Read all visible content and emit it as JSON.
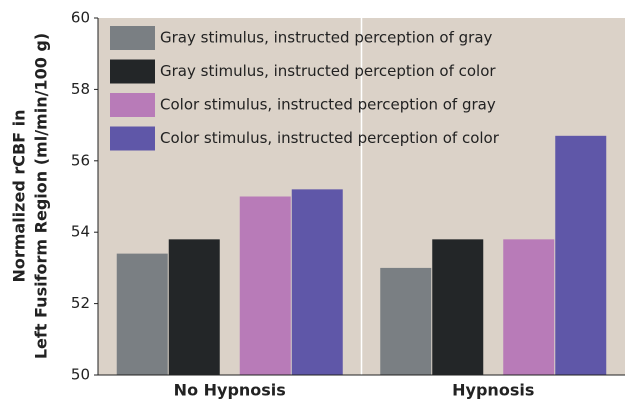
{
  "chart_data": {
    "type": "bar",
    "ylabel": [
      "Normalized rCBF in",
      "Left Fusiform Region (ml/min/100 g)"
    ],
    "categories": [
      "No Hypnosis",
      "Hypnosis"
    ],
    "series": [
      {
        "name": "Gray stimulus, instructed perception of gray",
        "color": "#7a7f83",
        "values": [
          53.4,
          53.0
        ]
      },
      {
        "name": "Gray stimulus, instructed perception of color",
        "color": "#232628",
        "values": [
          53.8,
          53.8
        ]
      },
      {
        "name": "Color stimulus, instructed perception of gray",
        "color": "#b87bb8",
        "values": [
          55.0,
          53.8
        ]
      },
      {
        "name": "Color stimulus, instructed perception of color",
        "color": "#5f57a8",
        "values": [
          55.2,
          56.7
        ]
      }
    ],
    "ylim": [
      50,
      60
    ],
    "yticks": [
      50,
      52,
      54,
      56,
      58,
      60
    ]
  }
}
